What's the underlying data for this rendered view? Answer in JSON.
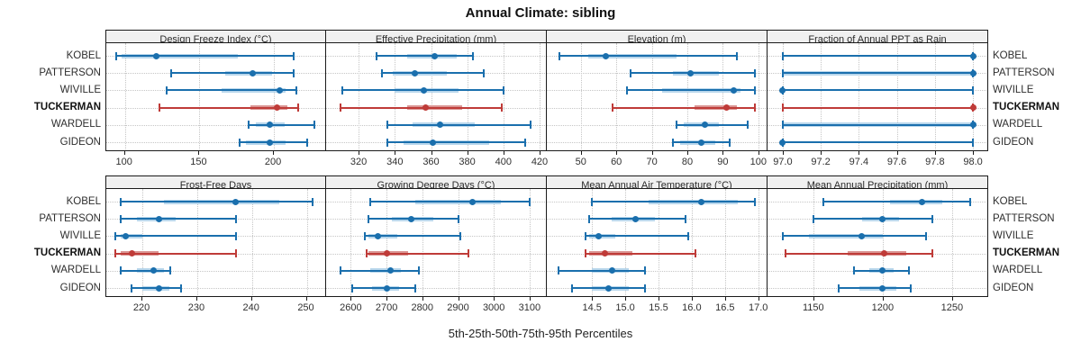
{
  "title": "Annual Climate: sibling",
  "caption": "5th-25th-50th-75th-95th Percentiles",
  "stations": [
    "KOBEL",
    "PATTERSON",
    "WIVILLE",
    "TUCKERMAN",
    "WARDELL",
    "GIDEON"
  ],
  "highlight_station": "TUCKERMAN",
  "colors": {
    "blue": "#1a6fad",
    "blue_band": "#b9d7ec",
    "red": "#bf3b38",
    "red_band": "#da9694",
    "grid": "#c6c6c6",
    "strip_bg": "#f0f0f0",
    "border": "#1a1a1a",
    "text": "#303030"
  },
  "chart_data": {
    "type": "percentile_dotplot",
    "percentiles": [
      "5th",
      "25th",
      "50th",
      "75th",
      "95th"
    ],
    "grid": "dotted",
    "station_order_top_to_bottom": [
      "KOBEL",
      "PATTERSON",
      "WIVILLE",
      "TUCKERMAN",
      "WARDELL",
      "GIDEON"
    ],
    "panels": [
      {
        "title": "Design Freeze Index (°C)",
        "row": 0,
        "col": 0,
        "xlim": [
          87.5,
          235.6
        ],
        "ticks": [
          100,
          150,
          200
        ],
        "tick_labels": [
          "100",
          "150",
          "200"
        ],
        "values": [
          [
            94,
            98,
            121,
            176,
            213
          ],
          [
            131,
            167,
            186,
            199,
            213
          ],
          [
            128,
            165,
            204,
            208,
            215
          ],
          [
            123,
            184,
            202,
            209,
            216
          ],
          [
            183,
            188,
            197,
            207,
            227
          ],
          [
            177,
            181,
            197,
            208,
            222
          ]
        ]
      },
      {
        "title": "Effective Precipitation (mm)",
        "row": 0,
        "col": 1,
        "xlim": [
          302,
          424
        ],
        "ticks": [
          320,
          340,
          360,
          380,
          400,
          420
        ],
        "tick_labels": [
          "320",
          "340",
          "360",
          "380",
          "400",
          "420"
        ],
        "values": [
          [
            330,
            347,
            362,
            374,
            383
          ],
          [
            333,
            339,
            351,
            369,
            389
          ],
          [
            311,
            340,
            356,
            375,
            400
          ],
          [
            310,
            347,
            357,
            377,
            399
          ],
          [
            336,
            350,
            365,
            384,
            415
          ],
          [
            336,
            345,
            361,
            392,
            412
          ]
        ]
      },
      {
        "title": "Elevation (m)",
        "row": 0,
        "col": 2,
        "xlim": [
          40.4,
          102.6
        ],
        "ticks": [
          50,
          60,
          70,
          80,
          90,
          100
        ],
        "tick_labels": [
          "50",
          "60",
          "70",
          "80",
          "90",
          "100"
        ],
        "values": [
          [
            44,
            52,
            57,
            77,
            94
          ],
          [
            64,
            76,
            81,
            89,
            99
          ],
          [
            63,
            73,
            93,
            95,
            99
          ],
          [
            59,
            82,
            91,
            94,
            99
          ],
          [
            77,
            79,
            85,
            89,
            97
          ],
          [
            76,
            78,
            84,
            88,
            92
          ]
        ]
      },
      {
        "title": "Fraction of Annual PPT as Rain",
        "row": 0,
        "col": 3,
        "xlim": [
          96.92,
          98.08
        ],
        "ticks": [
          97.0,
          97.2,
          97.4,
          97.6,
          97.8,
          98.0
        ],
        "tick_labels": [
          "97.0",
          "97.2",
          "97.4",
          "97.6",
          "97.8",
          "98.0"
        ],
        "values": [
          [
            97,
            98,
            98,
            98,
            98
          ],
          [
            97,
            97,
            98,
            98,
            98
          ],
          [
            97,
            97,
            97,
            97,
            98
          ],
          [
            97,
            98,
            98,
            98,
            98
          ],
          [
            97,
            97,
            98,
            98,
            98
          ],
          [
            97,
            97,
            97,
            97,
            98
          ]
        ]
      },
      {
        "title": "Frost-Free Days",
        "row": 1,
        "col": 0,
        "xlim": [
          213.4,
          253.7
        ],
        "ticks": [
          220,
          230,
          240,
          250
        ],
        "tick_labels": [
          "220",
          "230",
          "240",
          "250"
        ],
        "values": [
          [
            216,
            224,
            237,
            245,
            251
          ],
          [
            216,
            219,
            223,
            226,
            237
          ],
          [
            215,
            216,
            217,
            220,
            237
          ],
          [
            215,
            216,
            218,
            223,
            237
          ],
          [
            216,
            219,
            222,
            224,
            225
          ],
          [
            218,
            220,
            223,
            225,
            227
          ]
        ]
      },
      {
        "title": "Growing Degree Days (°C)",
        "row": 1,
        "col": 1,
        "xlim": [
          2531,
          3148
        ],
        "ticks": [
          2600,
          2700,
          2800,
          2900,
          3000,
          3100
        ],
        "tick_labels": [
          "2600",
          "2700",
          "2800",
          "2900",
          "3000",
          "3100"
        ],
        "values": [
          [
            2655,
            2780,
            2940,
            3020,
            3100
          ],
          [
            2650,
            2715,
            2770,
            2830,
            2900
          ],
          [
            2640,
            2650,
            2675,
            2730,
            2905
          ],
          [
            2645,
            2650,
            2700,
            2760,
            2930
          ],
          [
            2570,
            2655,
            2710,
            2740,
            2790
          ],
          [
            2605,
            2660,
            2700,
            2735,
            2780
          ]
        ]
      },
      {
        "title": "Mean Annual Air Temperature (°C)",
        "row": 1,
        "col": 2,
        "xlim": [
          13.82,
          17.14
        ],
        "ticks": [
          14.5,
          15.0,
          15.5,
          16.0,
          16.5,
          17.0
        ],
        "tick_labels": [
          "14.5",
          "15.0",
          "15.5",
          "16.0",
          "16.5",
          "17.0"
        ],
        "values": [
          [
            14.5,
            15.35,
            16.15,
            16.7,
            16.95
          ],
          [
            14.45,
            14.8,
            15.15,
            15.45,
            15.9
          ],
          [
            14.4,
            14.45,
            14.6,
            14.85,
            15.95
          ],
          [
            14.4,
            14.45,
            14.7,
            15.1,
            16.05
          ],
          [
            14.0,
            14.5,
            14.8,
            15.05,
            15.3
          ],
          [
            14.2,
            14.5,
            14.75,
            15.05,
            15.3
          ]
        ]
      },
      {
        "title": "Mean Annual Precipitation (mm)",
        "row": 1,
        "col": 3,
        "xlim": [
          1117,
          1276
        ],
        "ticks": [
          1150,
          1200,
          1250
        ],
        "tick_labels": [
          "1150",
          "1200",
          "1250"
        ],
        "values": [
          [
            1157,
            1205,
            1228,
            1243,
            1263
          ],
          [
            1150,
            1185,
            1200,
            1212,
            1236
          ],
          [
            1128,
            1147,
            1185,
            1200,
            1231
          ],
          [
            1130,
            1175,
            1201,
            1217,
            1236
          ],
          [
            1179,
            1190,
            1200,
            1208,
            1219
          ],
          [
            1168,
            1183,
            1200,
            1210,
            1220
          ]
        ]
      }
    ]
  }
}
